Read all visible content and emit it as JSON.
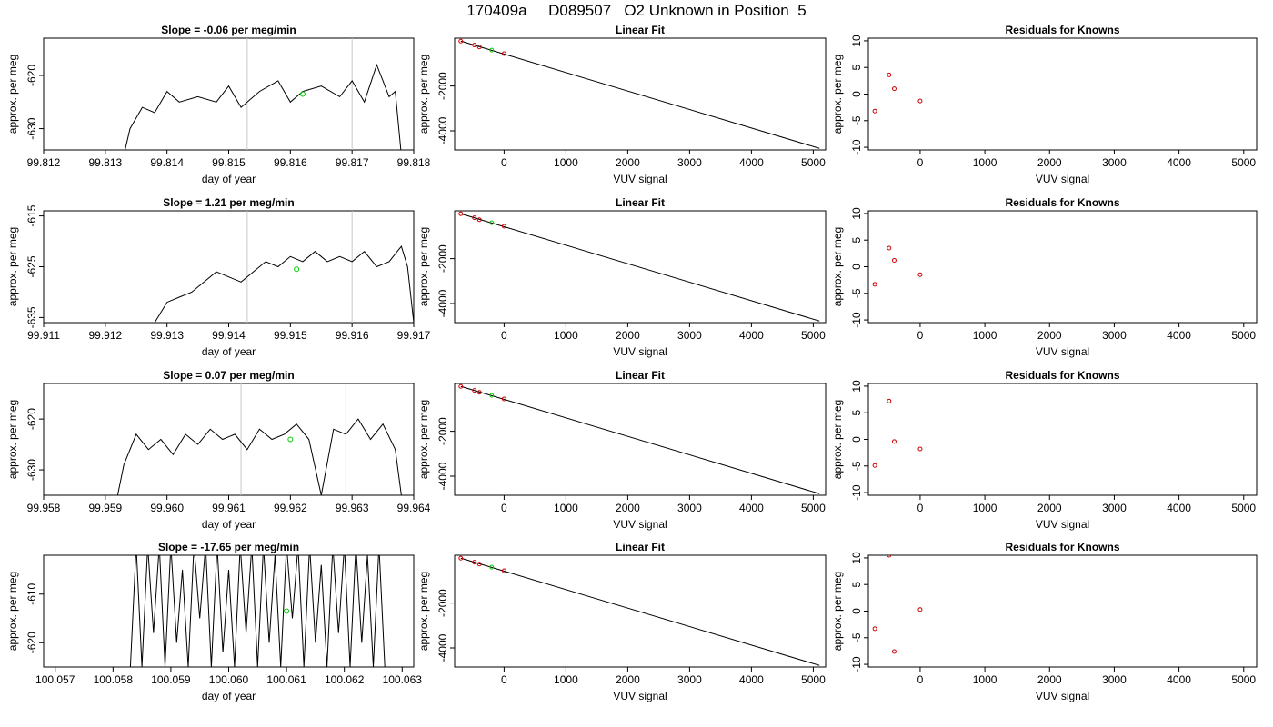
{
  "figure": {
    "title": "170409a     D089507   O2 Unknown in Position  5"
  },
  "chart_data": [
    {
      "type": "line",
      "title": "Slope =  -0.06  per meg/min",
      "xlabel": "day of year",
      "ylabel": "approx. per meg",
      "xlim": [
        99.812,
        99.818
      ],
      "ylim": [
        -634,
        -613
      ],
      "xticks": [
        "99.812",
        "99.813",
        "99.814",
        "99.815",
        "99.816",
        "99.817",
        "99.818"
      ],
      "yticks": [
        -630,
        -620
      ],
      "vlines": [
        99.8153,
        99.817
      ],
      "green_point": [
        99.8162,
        -623.5
      ],
      "x": [
        99.8133,
        99.8134,
        99.8136,
        99.8138,
        99.814,
        99.8142,
        99.8145,
        99.8148,
        99.815,
        99.8152,
        99.8155,
        99.8158,
        99.816,
        99.8162,
        99.8165,
        99.8168,
        99.817,
        99.8172,
        99.8174,
        99.8176,
        99.8177,
        99.8178
      ],
      "y": [
        -635,
        -630,
        -626,
        -627,
        -623,
        -625,
        -624,
        -625,
        -622,
        -626,
        -623,
        -621,
        -625,
        -623,
        -622,
        -624,
        -621,
        -625,
        -618,
        -624,
        -623,
        -635
      ]
    },
    {
      "type": "scatter",
      "title": "Linear Fit",
      "xlabel": "VUV signal",
      "ylabel": "approx. per meg",
      "xlim": [
        -800,
        5200
      ],
      "ylim": [
        -4850,
        130
      ],
      "xticks": [
        0,
        1000,
        2000,
        3000,
        4000,
        5000
      ],
      "yticks": [
        -4000,
        -2000
      ],
      "fit_line": {
        "x": [
          -700,
          5100
        ],
        "y": [
          0,
          -4780
        ]
      },
      "known_points": {
        "x": [
          -700,
          -480,
          -400,
          0
        ],
        "y": [
          0,
          -180,
          -265,
          -560
        ]
      },
      "unknown_point": [
        -200,
        -400
      ]
    },
    {
      "type": "scatter",
      "title": "Residuals for Knowns",
      "xlabel": "VUV signal",
      "ylabel": "approx. per meg",
      "xlim": [
        -800,
        5200
      ],
      "ylim": [
        -10.5,
        10.5
      ],
      "xticks": [
        0,
        1000,
        2000,
        3000,
        4000,
        5000
      ],
      "yticks": [
        -10,
        -5,
        0,
        5,
        10
      ],
      "x": [
        -700,
        -480,
        -400,
        0
      ],
      "y": [
        -3.2,
        3.6,
        1.0,
        -1.3
      ]
    },
    {
      "type": "line",
      "title": "Slope =  1.21  per meg/min",
      "xlabel": "day of year",
      "ylabel": "approx. per meg",
      "xlim": [
        99.911,
        99.917
      ],
      "ylim": [
        -636,
        -614
      ],
      "xticks": [
        "99.911",
        "99.912",
        "99.913",
        "99.914",
        "99.915",
        "99.916",
        "99.917"
      ],
      "yticks": [
        -635,
        -625,
        -615
      ],
      "vlines": [
        99.9143,
        99.916
      ],
      "green_point": [
        99.9151,
        -625.5
      ],
      "x": [
        99.9128,
        99.913,
        99.9132,
        99.9134,
        99.9136,
        99.9138,
        99.914,
        99.9142,
        99.9144,
        99.9146,
        99.9148,
        99.915,
        99.9152,
        99.9154,
        99.9156,
        99.9158,
        99.916,
        99.9162,
        99.9164,
        99.9166,
        99.9168,
        99.9169,
        99.917
      ],
      "y": [
        -636,
        -632,
        -631,
        -630,
        -628,
        -626,
        -627,
        -628,
        -626,
        -624,
        -625,
        -623,
        -624,
        -622,
        -624,
        -623,
        -624,
        -622,
        -625,
        -624,
        -621,
        -625,
        -636
      ]
    },
    {
      "type": "scatter",
      "title": "Linear Fit",
      "xlabel": "VUV signal",
      "ylabel": "approx. per meg",
      "xlim": [
        -800,
        5200
      ],
      "ylim": [
        -4850,
        130
      ],
      "xticks": [
        0,
        1000,
        2000,
        3000,
        4000,
        5000
      ],
      "yticks": [
        -4000,
        -2000
      ],
      "fit_line": {
        "x": [
          -700,
          5100
        ],
        "y": [
          0,
          -4780
        ]
      },
      "known_points": {
        "x": [
          -700,
          -480,
          -400,
          0
        ],
        "y": [
          0,
          -180,
          -265,
          -560
        ]
      },
      "unknown_point": [
        -200,
        -400
      ]
    },
    {
      "type": "scatter",
      "title": "Residuals for Knowns",
      "xlabel": "VUV signal",
      "ylabel": "approx. per meg",
      "xlim": [
        -800,
        5200
      ],
      "ylim": [
        -10.5,
        10.5
      ],
      "xticks": [
        0,
        1000,
        2000,
        3000,
        4000,
        5000
      ],
      "yticks": [
        -10,
        -5,
        0,
        5,
        10
      ],
      "x": [
        -700,
        -480,
        -400,
        0
      ],
      "y": [
        -3.3,
        3.5,
        1.2,
        -1.5
      ]
    },
    {
      "type": "line",
      "title": "Slope =  0.07  per meg/min",
      "xlabel": "day of year",
      "ylabel": "approx. per meg",
      "xlim": [
        99.958,
        99.964
      ],
      "ylim": [
        -635,
        -613
      ],
      "xticks": [
        "99.958",
        "99.959",
        "99.960",
        "99.961",
        "99.962",
        "99.963",
        "99.964"
      ],
      "yticks": [
        -630,
        -620
      ],
      "vlines": [
        99.9612,
        99.9629
      ],
      "green_point": [
        99.962,
        -624
      ],
      "x": [
        99.9592,
        99.9593,
        99.9595,
        99.9597,
        99.9599,
        99.9601,
        99.9603,
        99.9605,
        99.9607,
        99.9609,
        99.9611,
        99.9613,
        99.9615,
        99.9617,
        99.9619,
        99.9621,
        99.9623,
        99.9625,
        99.9627,
        99.9629,
        99.9631,
        99.9633,
        99.9635,
        99.9637,
        99.9638
      ],
      "y": [
        -635,
        -629,
        -623,
        -626,
        -624,
        -627,
        -623,
        -625,
        -622,
        -624,
        -623,
        -626,
        -622,
        -624,
        -623,
        -621,
        -624,
        -635,
        -622,
        -623,
        -620,
        -624,
        -621,
        -626,
        -635
      ]
    },
    {
      "type": "scatter",
      "title": "Linear Fit",
      "xlabel": "VUV signal",
      "ylabel": "approx. per meg",
      "xlim": [
        -800,
        5200
      ],
      "ylim": [
        -4850,
        130
      ],
      "xticks": [
        0,
        1000,
        2000,
        3000,
        4000,
        5000
      ],
      "yticks": [
        -4000,
        -2000
      ],
      "fit_line": {
        "x": [
          -700,
          5100
        ],
        "y": [
          0,
          -4780
        ]
      },
      "known_points": {
        "x": [
          -700,
          -480,
          -400,
          0
        ],
        "y": [
          0,
          -180,
          -265,
          -560
        ]
      },
      "unknown_point": [
        -200,
        -400
      ]
    },
    {
      "type": "scatter",
      "title": "Residuals for Knowns",
      "xlabel": "VUV signal",
      "ylabel": "approx. per meg",
      "xlim": [
        -800,
        5200
      ],
      "ylim": [
        -10.5,
        10.5
      ],
      "xticks": [
        0,
        1000,
        2000,
        3000,
        4000,
        5000
      ],
      "yticks": [
        -10,
        -5,
        0,
        5,
        10
      ],
      "x": [
        -700,
        -480,
        -400,
        0
      ],
      "y": [
        -4.9,
        7.2,
        -0.4,
        -1.8
      ]
    },
    {
      "type": "line",
      "title": "Slope =  -17.65  per meg/min",
      "xlabel": "day of year",
      "ylabel": "approx. per meg",
      "xlim": [
        100.0568,
        100.0632
      ],
      "ylim": [
        -625,
        -602
      ],
      "xticks": [
        "100.057",
        "100.058",
        "100.059",
        "100.060",
        "100.061",
        "100.062",
        "100.063"
      ],
      "yticks": [
        -620,
        -610
      ],
      "vlines": [],
      "green_point": [
        100.061,
        -613.5
      ],
      "x": [
        100.0583,
        100.0584,
        100.0585,
        100.0586,
        100.0587,
        100.0588,
        100.0589,
        100.059,
        100.0591,
        100.0592,
        100.0593,
        100.0594,
        100.0595,
        100.0596,
        100.0597,
        100.0598,
        100.0599,
        100.06,
        100.0601,
        100.0602,
        100.0603,
        100.0604,
        100.0605,
        100.0606,
        100.0607,
        100.0608,
        100.0609,
        100.061,
        100.0611,
        100.0612,
        100.0613,
        100.0614,
        100.0615,
        100.0616,
        100.0617,
        100.0618,
        100.0619,
        100.062,
        100.0621,
        100.0622,
        100.0623,
        100.0624,
        100.0625,
        100.0626,
        100.0627
      ],
      "y": [
        -625,
        -600,
        -625,
        -600,
        -618,
        -600,
        -625,
        -600,
        -620,
        -605,
        -625,
        -600,
        -615,
        -600,
        -625,
        -600,
        -622,
        -605,
        -625,
        -600,
        -618,
        -600,
        -625,
        -600,
        -620,
        -602,
        -625,
        -600,
        -615,
        -600,
        -625,
        -600,
        -620,
        -604,
        -625,
        -600,
        -618,
        -600,
        -625,
        -600,
        -620,
        -602,
        -625,
        -600,
        -625
      ]
    },
    {
      "type": "scatter",
      "title": "Linear Fit",
      "xlabel": "VUV signal",
      "ylabel": "approx. per meg",
      "xlim": [
        -800,
        5200
      ],
      "ylim": [
        -4850,
        130
      ],
      "xticks": [
        0,
        1000,
        2000,
        3000,
        4000,
        5000
      ],
      "yticks": [
        -4000,
        -2000
      ],
      "fit_line": {
        "x": [
          -700,
          5100
        ],
        "y": [
          0,
          -4780
        ]
      },
      "known_points": {
        "x": [
          -700,
          -480,
          -400,
          0
        ],
        "y": [
          0,
          -180,
          -265,
          -560
        ]
      },
      "unknown_point": [
        -200,
        -400
      ]
    },
    {
      "type": "scatter",
      "title": "Residuals for Knowns",
      "xlabel": "VUV signal",
      "ylabel": "approx. per meg",
      "xlim": [
        -800,
        5200
      ],
      "ylim": [
        -10.5,
        10.5
      ],
      "xticks": [
        0,
        1000,
        2000,
        3000,
        4000,
        5000
      ],
      "yticks": [
        -10,
        -5,
        0,
        5,
        10
      ],
      "x": [
        -700,
        -480,
        -400,
        0
      ],
      "y": [
        -3.3,
        10.5,
        -7.6,
        0.3
      ]
    }
  ]
}
